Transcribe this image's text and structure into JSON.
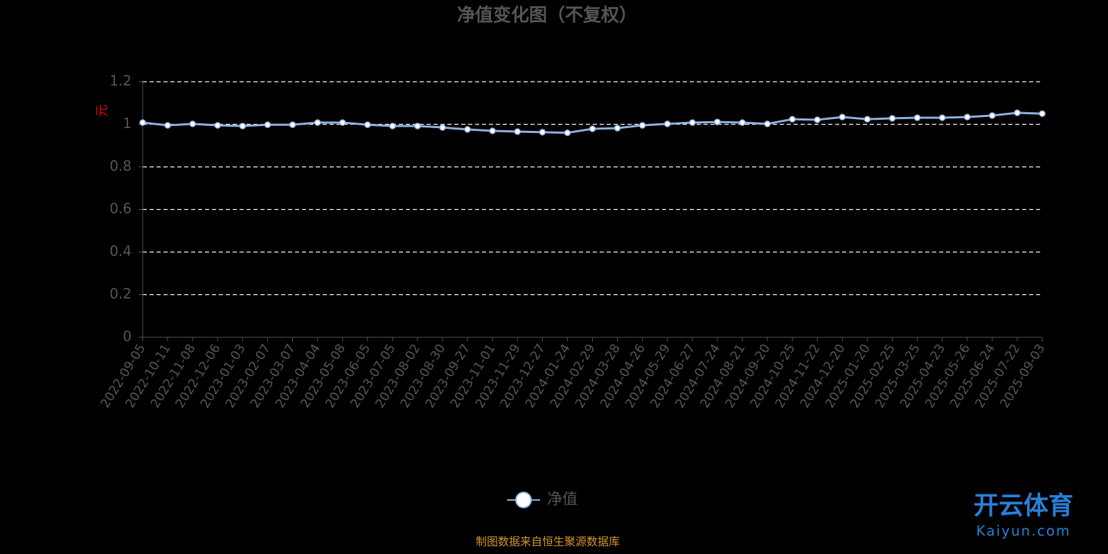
{
  "chart_data": {
    "type": "line",
    "title": "净值变化图（不复权）",
    "y_label": "元",
    "categories": [
      "2022-09-05",
      "2022-10-11",
      "2022-11-08",
      "2022-12-06",
      "2023-01-03",
      "2023-02-07",
      "2023-03-07",
      "2023-04-04",
      "2023-05-08",
      "2023-06-05",
      "2023-07-05",
      "2023-08-02",
      "2023-08-30",
      "2023-09-27",
      "2023-11-01",
      "2023-11-29",
      "2023-12-27",
      "2024-01-24",
      "2024-02-29",
      "2024-03-28",
      "2024-04-26",
      "2024-05-29",
      "2024-06-27",
      "2024-07-24",
      "2024-08-21",
      "2024-09-20",
      "2024-10-25",
      "2024-11-22",
      "2024-12-20",
      "2025-01-20",
      "2025-02-25",
      "2025-03-25",
      "2025-04-23",
      "2025-05-26",
      "2025-06-24",
      "2025-07-22",
      "2025-09-03"
    ],
    "series": [
      {
        "name": "净值",
        "color": "#8fb3e0",
        "values": [
          1.008,
          0.995,
          1.002,
          0.995,
          0.992,
          0.998,
          0.998,
          1.008,
          1.008,
          0.998,
          0.992,
          0.992,
          0.985,
          0.976,
          0.969,
          0.966,
          0.963,
          0.96,
          0.979,
          0.982,
          0.995,
          1.002,
          1.008,
          1.011,
          1.008,
          1.002,
          1.024,
          1.021,
          1.034,
          1.024,
          1.028,
          1.031,
          1.031,
          1.034,
          1.041,
          1.054,
          1.05
        ]
      }
    ],
    "ylim": [
      0,
      1.2
    ],
    "yticks": [
      0,
      0.2,
      0.4,
      0.6,
      0.8,
      1,
      1.2
    ],
    "grid": true,
    "source": "制图数据来自恒生聚源数据库"
  },
  "watermark": {
    "brand": "开云体育",
    "url": "Kaiyun.com"
  }
}
